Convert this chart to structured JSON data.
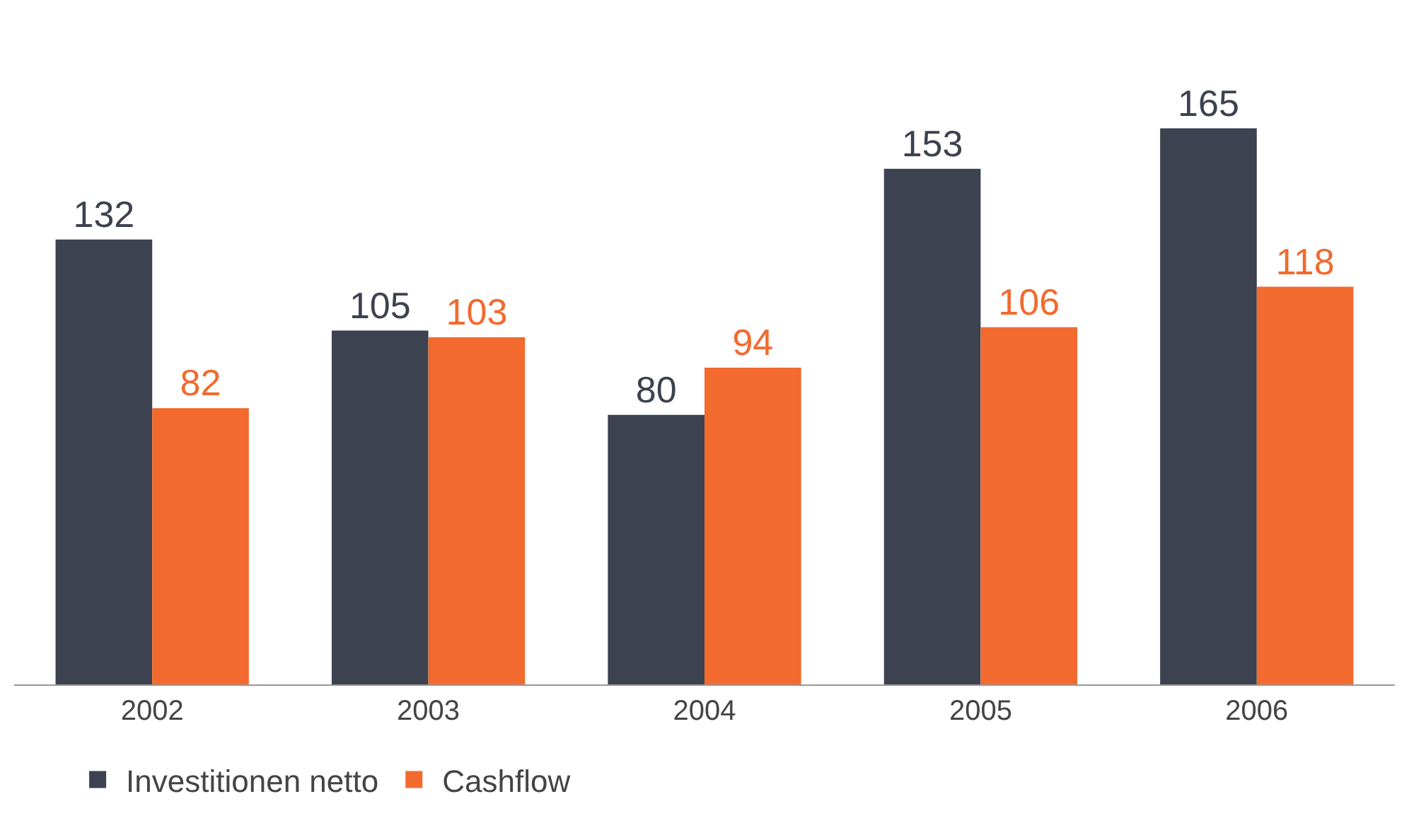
{
  "chart_data": {
    "type": "bar",
    "categories": [
      "2002",
      "2003",
      "2004",
      "2005",
      "2006"
    ],
    "series": [
      {
        "name": "Investitionen netto",
        "color": "#3d4250",
        "values": [
          132,
          105,
          80,
          153,
          165
        ]
      },
      {
        "name": "Cashflow",
        "color": "#f26a2e",
        "values": [
          82,
          103,
          94,
          106,
          118
        ]
      }
    ],
    "data_labels": true,
    "legend": "bottom left"
  }
}
